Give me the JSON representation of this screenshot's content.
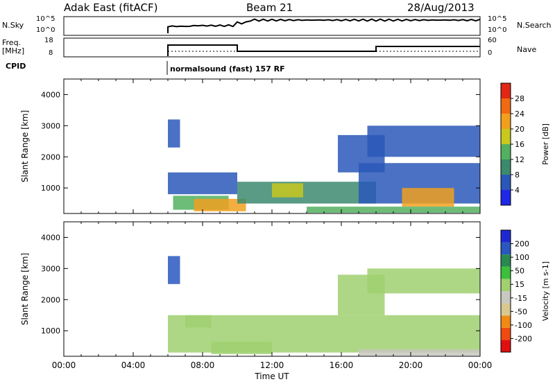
{
  "header": {
    "site": "Adak East (fitACF)",
    "beam": "Beam 21",
    "date": "28/Aug/2013"
  },
  "strips": {
    "nsky_label": "N.Sky",
    "nsearch_label": "N.Search",
    "nsky_ticks": [
      "10^5",
      "10^0"
    ],
    "nsearch_ticks": [
      "10^5",
      "10^0"
    ],
    "freq_label": "Freq.",
    "freq_unit": "[MHz]",
    "freq_ticks": [
      "18",
      "8"
    ],
    "nave_label": "Nave",
    "nave_ticks": [
      "60",
      "0"
    ],
    "cpid_label": "CPID",
    "cpid_text": "normalsound (fast) 157 RF"
  },
  "colors": {
    "power": [
      "#1e28e6",
      "#2a58b8",
      "#3c8a6e",
      "#53b060",
      "#c8c81e",
      "#f0a01e",
      "#f06a14",
      "#e02814"
    ],
    "velocity": [
      "#e01010",
      "#f04a10",
      "#f08a14",
      "#d8c890",
      "#c8c8c0",
      "#a0d070",
      "#3cc03c",
      "#288a50",
      "#2a58c0",
      "#1e28d0"
    ]
  },
  "chart_data": [
    {
      "type": "heatmap",
      "name": "power",
      "ylabel": "Slant Range [km]",
      "ylim": [
        180,
        4500
      ],
      "yticks": [
        1000,
        2000,
        3000,
        4000
      ],
      "colorbar": {
        "label": "Power [dB]",
        "ticks": [
          "28",
          "24",
          "20",
          "16",
          "12",
          "8",
          "4"
        ],
        "range": [
          0,
          30
        ]
      },
      "regions": [
        {
          "x": [
            6.0,
            6.7
          ],
          "y": [
            2300,
            3200
          ],
          "level": 1
        },
        {
          "x": [
            6.0,
            10.0
          ],
          "y": [
            800,
            1500
          ],
          "level": 1
        },
        {
          "x": [
            6.3,
            9.5
          ],
          "y": [
            300,
            750
          ],
          "level": 3
        },
        {
          "x": [
            7.5,
            10.5
          ],
          "y": [
            250,
            650
          ],
          "level": 5
        },
        {
          "x": [
            10.0,
            18.0
          ],
          "y": [
            500,
            1200
          ],
          "level": 2
        },
        {
          "x": [
            12.0,
            13.8
          ],
          "y": [
            700,
            1150
          ],
          "level": 4
        },
        {
          "x": [
            15.8,
            18.5
          ],
          "y": [
            1500,
            2700
          ],
          "level": 1
        },
        {
          "x": [
            17.5,
            24.0
          ],
          "y": [
            2000,
            3000
          ],
          "level": 1
        },
        {
          "x": [
            17.0,
            24.0
          ],
          "y": [
            500,
            1800
          ],
          "level": 1
        },
        {
          "x": [
            19.5,
            22.5
          ],
          "y": [
            400,
            1000
          ],
          "level": 5
        },
        {
          "x": [
            14.0,
            24.0
          ],
          "y": [
            200,
            400
          ],
          "level": 3
        }
      ]
    },
    {
      "type": "heatmap",
      "name": "velocity",
      "ylabel": "Slant Range [km]",
      "xlabel": "Time UT",
      "xlim": [
        0,
        24
      ],
      "xticks": [
        "00:00",
        "04:00",
        "08:00",
        "12:00",
        "16:00",
        "20:00",
        "00:00"
      ],
      "ylim": [
        180,
        4500
      ],
      "yticks": [
        1000,
        2000,
        3000,
        4000
      ],
      "colorbar": {
        "label": "Velocity [m s-1]",
        "ticks": [
          "200",
          "100",
          "50",
          "15",
          "-15",
          "-50",
          "-100",
          "-200"
        ],
        "range": [
          -250,
          250
        ]
      },
      "regions": [
        {
          "x": [
            6.0,
            6.7
          ],
          "y": [
            2500,
            3400
          ],
          "level": 150
        },
        {
          "x": [
            6.0,
            24.0
          ],
          "y": [
            300,
            1500
          ],
          "level": 0
        },
        {
          "x": [
            7.0,
            8.5
          ],
          "y": [
            1100,
            1500
          ],
          "level": 30
        },
        {
          "x": [
            15.8,
            18.5
          ],
          "y": [
            1500,
            2800
          ],
          "level": 0
        },
        {
          "x": [
            17.5,
            24.0
          ],
          "y": [
            2200,
            3000
          ],
          "level": 0
        },
        {
          "x": [
            8.5,
            12.0
          ],
          "y": [
            250,
            650
          ],
          "level": 20
        },
        {
          "x": [
            17.0,
            24.0
          ],
          "y": [
            200,
            400
          ],
          "level": -40
        }
      ]
    }
  ]
}
